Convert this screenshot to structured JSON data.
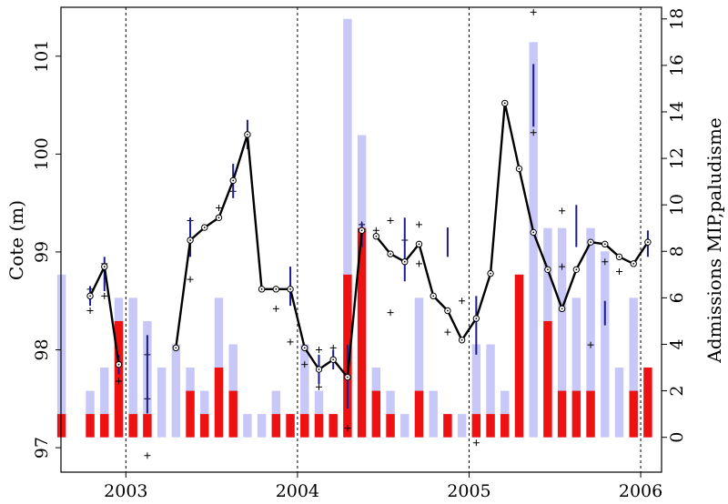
{
  "chart_data": {
    "type": "bar",
    "ylabel": "Cote (m)",
    "y2label": "Admissions MIP,paludisme",
    "x_ticks": [
      "2003",
      "2004",
      "2005",
      "2006"
    ],
    "y_ticks": [
      "97",
      "98",
      "99",
      "100",
      "101"
    ],
    "y2_ticks": [
      "0",
      "2",
      "4",
      "6",
      "8",
      "10",
      "12",
      "14",
      "16",
      "18"
    ],
    "ylim": [
      96.75,
      101.5
    ],
    "y2lim": [
      -1.5,
      18.5
    ],
    "xlim": [
      "2002-08-15",
      "2006-02-15"
    ],
    "year_lines": [
      "2003-01-01",
      "2004-01-01",
      "2005-01-01",
      "2006-01-01"
    ],
    "grid": false,
    "colors": {
      "mip_admissions": "#c8c8f8",
      "malaria_admissions": "#ee1111",
      "water_level_line": "#000000",
      "error_bars": "#1c1c8c",
      "raw_points": "#000000",
      "year_lines": "#000000"
    },
    "bars": {
      "months": [
        "2002-08",
        "2002-10",
        "2002-11",
        "2002-12",
        "2003-01",
        "2003-02",
        "2003-03",
        "2003-04",
        "2003-05",
        "2003-06",
        "2003-07",
        "2003-08",
        "2003-09",
        "2003-10",
        "2003-11",
        "2003-12",
        "2004-01",
        "2004-02",
        "2004-03",
        "2004-04",
        "2004-05",
        "2004-06",
        "2004-07",
        "2004-08",
        "2004-09",
        "2004-10",
        "2004-11",
        "2004-12",
        "2005-01",
        "2005-02",
        "2005-03",
        "2005-04",
        "2005-05",
        "2005-06",
        "2005-07",
        "2005-08",
        "2005-09",
        "2005-10",
        "2005-11",
        "2005-12",
        "2006-01"
      ],
      "series": [
        {
          "name": "MIP",
          "values": [
            7,
            2,
            3,
            6,
            6,
            5,
            3,
            4,
            3,
            2,
            6,
            4,
            1,
            1,
            2,
            1,
            4,
            2,
            1,
            18,
            13,
            3,
            2,
            1,
            6,
            2,
            1,
            1,
            4,
            4,
            2,
            7,
            17,
            9,
            9,
            6,
            9,
            8,
            3,
            6,
            2
          ]
        },
        {
          "name": "paludisme",
          "values": [
            1,
            1,
            1,
            5,
            1,
            1,
            0,
            0,
            2,
            1,
            3,
            2,
            0,
            0,
            1,
            1,
            1,
            1,
            1,
            7,
            9,
            2,
            1,
            0,
            2,
            0,
            1,
            0,
            1,
            1,
            1,
            7,
            0,
            5,
            2,
            2,
            2,
            0,
            0,
            2,
            3
          ]
        }
      ]
    },
    "water_level": {
      "segments": [
        {
          "x": [
            "2002-10",
            "2002-11",
            "2002-12"
          ],
          "y": [
            98.55,
            98.85,
            97.85
          ]
        },
        {
          "x": [
            "2003-04",
            "2003-05",
            "2003-06",
            "2003-07",
            "2003-08",
            "2003-09",
            "2003-10",
            "2003-11",
            "2003-12",
            "2004-01",
            "2004-02",
            "2004-03",
            "2004-04",
            "2004-05"
          ],
          "y": [
            98.02,
            99.12,
            99.25,
            99.35,
            99.73,
            100.2,
            98.62,
            98.62,
            98.62,
            98.02,
            97.8,
            97.9,
            97.72,
            99.22
          ]
        },
        {
          "x": [
            "2004-06",
            "2004-07",
            "2004-08",
            "2004-09",
            "2004-10",
            "2004-11",
            "2004-12",
            "2005-01",
            "2005-02",
            "2005-03",
            "2005-04",
            "2005-05",
            "2005-06",
            "2005-07",
            "2005-08",
            "2005-09",
            "2005-10",
            "2005-11",
            "2005-12",
            "2006-01"
          ],
          "y": [
            99.16,
            98.98,
            98.9,
            99.08,
            98.55,
            98.4,
            98.1,
            98.32,
            98.78,
            100.52,
            99.85,
            99.2,
            98.82,
            98.42,
            98.82,
            99.1,
            99.08,
            98.95,
            98.88,
            99.1
          ]
        }
      ],
      "error_bars": [
        {
          "x": "2002-10",
          "low": 98.45,
          "high": 98.65
        },
        {
          "x": "2002-11",
          "low": 98.6,
          "high": 98.95
        },
        {
          "x": "2002-12",
          "low": 97.75,
          "high": 97.95
        },
        {
          "x": "2003-02",
          "low": 97.35,
          "high": 98.15
        },
        {
          "x": "2003-05",
          "low": 98.95,
          "high": 99.35
        },
        {
          "x": "2003-08",
          "low": 99.55,
          "high": 99.9
        },
        {
          "x": "2003-09",
          "low": 100.05,
          "high": 100.35
        },
        {
          "x": "2003-12",
          "low": 98.45,
          "high": 98.85
        },
        {
          "x": "2004-02",
          "low": 97.65,
          "high": 97.95
        },
        {
          "x": "2004-03",
          "low": 97.8,
          "high": 98.0
        },
        {
          "x": "2004-04",
          "low": 97.4,
          "high": 98.05
        },
        {
          "x": "2004-05",
          "low": 99.05,
          "high": 99.3
        },
        {
          "x": "2004-08",
          "low": 98.7,
          "high": 99.35
        },
        {
          "x": "2004-11",
          "low": 98.95,
          "high": 99.25
        },
        {
          "x": "2005-01",
          "low": 97.95,
          "high": 98.55
        },
        {
          "x": "2005-05",
          "low": 100.28,
          "high": 100.92
        },
        {
          "x": "2005-08",
          "low": 99.05,
          "high": 99.48
        },
        {
          "x": "2005-10",
          "low": 98.25,
          "high": 98.5
        },
        {
          "x": "2006-01",
          "low": 98.95,
          "high": 99.22
        }
      ],
      "raw_points": [
        {
          "x": "2002-10",
          "y": 98.4
        },
        {
          "x": "2002-10",
          "y": 98.62
        },
        {
          "x": "2002-11",
          "y": 98.55
        },
        {
          "x": "2002-11",
          "y": 98.88
        },
        {
          "x": "2002-12",
          "y": 97.68
        },
        {
          "x": "2003-02",
          "y": 96.92
        },
        {
          "x": "2003-02",
          "y": 97.95
        },
        {
          "x": "2003-02",
          "y": 97.5
        },
        {
          "x": "2003-05",
          "y": 98.72
        },
        {
          "x": "2003-05",
          "y": 99.32
        },
        {
          "x": "2003-07",
          "y": 99.45
        },
        {
          "x": "2003-08",
          "y": 99.62
        },
        {
          "x": "2003-11",
          "y": 98.42
        },
        {
          "x": "2003-12",
          "y": 98.08
        },
        {
          "x": "2004-01",
          "y": 97.85
        },
        {
          "x": "2004-02",
          "y": 97.62
        },
        {
          "x": "2004-02",
          "y": 98.0
        },
        {
          "x": "2004-03",
          "y": 98.02
        },
        {
          "x": "2004-04",
          "y": 97.2
        },
        {
          "x": "2004-05",
          "y": 99.28
        },
        {
          "x": "2004-06",
          "y": 99.22
        },
        {
          "x": "2004-07",
          "y": 98.38
        },
        {
          "x": "2004-07",
          "y": 99.32
        },
        {
          "x": "2004-08",
          "y": 99.12
        },
        {
          "x": "2004-09",
          "y": 98.88
        },
        {
          "x": "2004-09",
          "y": 99.28
        },
        {
          "x": "2004-11",
          "y": 98.18
        },
        {
          "x": "2004-12",
          "y": 98.5
        },
        {
          "x": "2005-01",
          "y": 97.05
        },
        {
          "x": "2005-05",
          "y": 101.45
        },
        {
          "x": "2005-05",
          "y": 100.22
        },
        {
          "x": "2005-07",
          "y": 99.42
        },
        {
          "x": "2005-07",
          "y": 98.85
        },
        {
          "x": "2005-09",
          "y": 98.05
        },
        {
          "x": "2005-10",
          "y": 98.9
        },
        {
          "x": "2005-11",
          "y": 98.8
        }
      ]
    }
  }
}
